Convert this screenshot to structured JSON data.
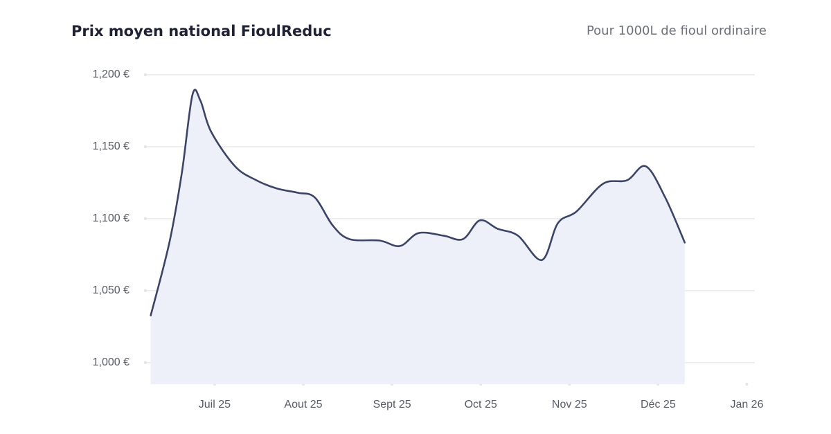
{
  "chart_data": {
    "type": "area",
    "title": "Prix moyen national FioulReduc",
    "subtitle": "Pour 1000L de fioul ordinaire",
    "x": [
      6.28,
      6.49,
      6.63,
      6.75,
      6.84,
      6.96,
      7.23,
      7.47,
      7.7,
      7.94,
      8.13,
      8.33,
      8.52,
      8.86,
      9.09,
      9.3,
      9.58,
      9.8,
      9.99,
      10.19,
      10.42,
      10.69,
      10.87,
      11.08,
      11.38,
      11.65,
      11.86,
      12.08,
      12.3
    ],
    "values": [
      1032.8,
      1083.4,
      1131.6,
      1186.0,
      1182.0,
      1160.5,
      1136.4,
      1126.7,
      1121.0,
      1118.0,
      1114.7,
      1095.4,
      1085.8,
      1084.8,
      1081.0,
      1090.0,
      1088.2,
      1085.8,
      1098.8,
      1093.0,
      1088.2,
      1071.3,
      1096.9,
      1105.0,
      1124.3,
      1126.7,
      1136.4,
      1114.7,
      1083.4
    ],
    "color": "#3b4466",
    "fill": "#eef0f9",
    "xlim": [
      6.22,
      13.09
    ],
    "xticks": [
      {
        "value": 7,
        "label": "Juil 25"
      },
      {
        "value": 8,
        "label": "Aout 25"
      },
      {
        "value": 9,
        "label": "Sept 25"
      },
      {
        "value": 10,
        "label": "Oct 25"
      },
      {
        "value": 11,
        "label": "Nov 25"
      },
      {
        "value": 12,
        "label": "Déc 25"
      },
      {
        "value": 13,
        "label": "Jan 26"
      }
    ],
    "ylim": [
      985,
      1200
    ],
    "yticks": [
      {
        "value": 1000,
        "label": "1,000 €"
      },
      {
        "value": 1050,
        "label": "1,050 €"
      },
      {
        "value": 1100,
        "label": "1,100 €"
      },
      {
        "value": 1150,
        "label": "1,150 €"
      },
      {
        "value": 1200,
        "label": "1,200 €"
      }
    ],
    "grid": true
  }
}
